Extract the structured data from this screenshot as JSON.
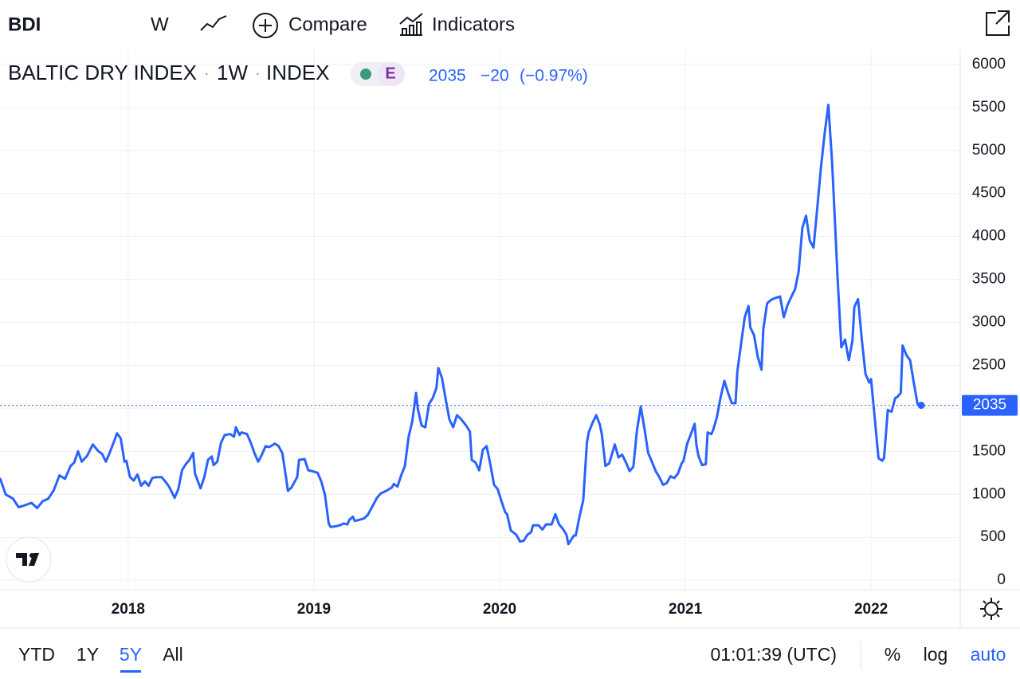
{
  "ui": {
    "symbol": "BDI",
    "interval_button": "W",
    "compare": "Compare",
    "indicators": "Indicators",
    "interval": "1W",
    "exchange": "INDEX",
    "badge": "E",
    "change": "−20",
    "change_pct": "(−0.97%)",
    "ranges": [
      "YTD",
      "1Y",
      "5Y",
      "All"
    ],
    "active_range": 2,
    "time": "01:01:39 (UTC)",
    "percent": "%",
    "log": "log",
    "auto": "auto"
  },
  "chart_data": {
    "type": "line",
    "title": "BALTIC DRY INDEX",
    "color": "#2962ff",
    "grid": true,
    "log_scale": false,
    "xlim": [
      2017.31,
      2022.48
    ],
    "xticks": [
      2018,
      2019,
      2020,
      2021,
      2022
    ],
    "ylim": [
      -110,
      6175
    ],
    "yticks": [
      0,
      500,
      1000,
      1500,
      2000,
      2500,
      3000,
      3500,
      4000,
      4500,
      5000,
      5500,
      6000
    ],
    "x": [
      2017.31,
      2017.34,
      2017.38,
      2017.41,
      2017.44,
      2017.48,
      2017.51,
      2017.54,
      2017.57,
      2017.6,
      2017.63,
      2017.66,
      2017.69,
      2017.71,
      2017.73,
      2017.75,
      2017.78,
      2017.81,
      2017.84,
      2017.86,
      2017.88,
      2017.9,
      2017.93,
      2017.94,
      2017.96,
      2017.98,
      2017.99,
      2018.01,
      2018.03,
      2018.05,
      2018.07,
      2018.09,
      2018.11,
      2018.13,
      2018.15,
      2018.18,
      2018.2,
      2018.22,
      2018.25,
      2018.27,
      2018.29,
      2018.31,
      2018.33,
      2018.35,
      2018.36,
      2018.39,
      2018.41,
      2018.43,
      2018.45,
      2018.46,
      2018.48,
      2018.5,
      2018.52,
      2018.55,
      2018.57,
      2018.58,
      2018.6,
      2018.61,
      2018.64,
      2018.66,
      2018.68,
      2018.7,
      2018.72,
      2018.74,
      2018.76,
      2018.79,
      2018.81,
      2018.83,
      2018.85,
      2018.86,
      2018.88,
      2018.91,
      2018.92,
      2018.95,
      2018.97,
      2018.99,
      2019.02,
      2019.04,
      2019.06,
      2019.08,
      2019.09,
      2019.12,
      2019.14,
      2019.16,
      2019.18,
      2019.19,
      2019.21,
      2019.22,
      2019.24,
      2019.27,
      2019.29,
      2019.31,
      2019.34,
      2019.36,
      2019.39,
      2019.42,
      2019.43,
      2019.45,
      2019.47,
      2019.49,
      2019.51,
      2019.53,
      2019.55,
      2019.56,
      2019.58,
      2019.6,
      2019.62,
      2019.64,
      2019.66,
      2019.67,
      2019.69,
      2019.71,
      2019.73,
      2019.75,
      2019.77,
      2019.79,
      2019.82,
      2019.84,
      2019.85,
      2019.87,
      2019.89,
      2019.91,
      2019.93,
      2019.95,
      2019.97,
      2019.99,
      2020.01,
      2020.03,
      2020.04,
      2020.06,
      2020.09,
      2020.11,
      2020.13,
      2020.15,
      2020.17,
      2020.18,
      2020.21,
      2020.23,
      2020.25,
      2020.28,
      2020.3,
      2020.32,
      2020.34,
      2020.36,
      2020.37,
      2020.4,
      2020.41,
      2020.43,
      2020.45,
      2020.47,
      2020.48,
      2020.5,
      2020.52,
      2020.54,
      2020.55,
      2020.57,
      2020.59,
      2020.62,
      2020.64,
      2020.66,
      2020.68,
      2020.7,
      2020.72,
      2020.74,
      2020.76,
      2020.78,
      2020.8,
      2020.82,
      2020.84,
      2020.86,
      2020.88,
      2020.9,
      2020.92,
      2020.94,
      2020.96,
      2020.98,
      2020.99,
      2021.01,
      2021.03,
      2021.05,
      2021.06,
      2021.07,
      2021.09,
      2021.11,
      2021.12,
      2021.14,
      2021.15,
      2021.17,
      2021.19,
      2021.21,
      2021.23,
      2021.25,
      2021.27,
      2021.28,
      2021.3,
      2021.32,
      2021.34,
      2021.35,
      2021.37,
      2021.39,
      2021.41,
      2021.42,
      2021.44,
      2021.46,
      2021.48,
      2021.51,
      2021.53,
      2021.55,
      2021.58,
      2021.59,
      2021.61,
      2021.63,
      2021.65,
      2021.67,
      2021.69,
      2021.71,
      2021.73,
      2021.75,
      2021.77,
      2021.79,
      2021.8,
      2021.82,
      2021.84,
      2021.86,
      2021.88,
      2021.9,
      2021.91,
      2021.93,
      2021.95,
      2021.97,
      2021.99,
      2022.0,
      2022.02,
      2022.04,
      2022.06,
      2022.07,
      2022.09,
      2022.11,
      2022.13,
      2022.14,
      2022.16,
      2022.17,
      2022.19,
      2022.21,
      2022.23,
      2022.25,
      2022.27
    ],
    "values": [
      1190,
      1000,
      950,
      850,
      870,
      900,
      840,
      920,
      950,
      1050,
      1220,
      1180,
      1330,
      1370,
      1500,
      1380,
      1450,
      1580,
      1500,
      1470,
      1380,
      1480,
      1650,
      1710,
      1650,
      1380,
      1390,
      1200,
      1160,
      1230,
      1100,
      1150,
      1100,
      1190,
      1200,
      1200,
      1150,
      1090,
      960,
      1060,
      1280,
      1350,
      1400,
      1480,
      1240,
      1070,
      1200,
      1400,
      1440,
      1340,
      1380,
      1600,
      1690,
      1700,
      1670,
      1780,
      1690,
      1720,
      1700,
      1600,
      1480,
      1380,
      1460,
      1560,
      1550,
      1590,
      1560,
      1480,
      1200,
      1040,
      1080,
      1200,
      1400,
      1410,
      1280,
      1270,
      1250,
      1150,
      990,
      660,
      620,
      630,
      640,
      660,
      650,
      700,
      740,
      690,
      700,
      720,
      760,
      840,
      960,
      1010,
      1040,
      1080,
      1120,
      1090,
      1220,
      1330,
      1670,
      1850,
      2180,
      1990,
      1800,
      1780,
      2050,
      2120,
      2240,
      2470,
      2350,
      2100,
      1870,
      1780,
      1920,
      1880,
      1800,
      1730,
      1400,
      1370,
      1280,
      1520,
      1560,
      1350,
      1110,
      1060,
      920,
      790,
      770,
      580,
      530,
      450,
      460,
      530,
      560,
      640,
      640,
      590,
      650,
      650,
      770,
      650,
      600,
      530,
      420,
      520,
      520,
      740,
      930,
      1600,
      1720,
      1830,
      1920,
      1810,
      1700,
      1330,
      1360,
      1580,
      1430,
      1460,
      1370,
      1270,
      1320,
      1750,
      2020,
      1760,
      1480,
      1380,
      1270,
      1200,
      1110,
      1130,
      1210,
      1190,
      1240,
      1360,
      1390,
      1590,
      1700,
      1820,
      1570,
      1450,
      1340,
      1350,
      1720,
      1700,
      1750,
      1900,
      2130,
      2320,
      2180,
      2060,
      2060,
      2430,
      2750,
      3060,
      3190,
      2940,
      2850,
      2600,
      2450,
      2920,
      3220,
      3260,
      3280,
      3300,
      3060,
      3200,
      3340,
      3380,
      3590,
      4100,
      4240,
      3950,
      3870,
      4320,
      4800,
      5200,
      5530,
      4860,
      4420,
      3500,
      2710,
      2800,
      2560,
      2790,
      3180,
      3270,
      2800,
      2400,
      2300,
      2340,
      1880,
      1420,
      1390,
      1420,
      1980,
      1960,
      2120,
      2130,
      2180,
      2730,
      2620,
      2560,
      2300,
      2050,
      2035
    ]
  }
}
